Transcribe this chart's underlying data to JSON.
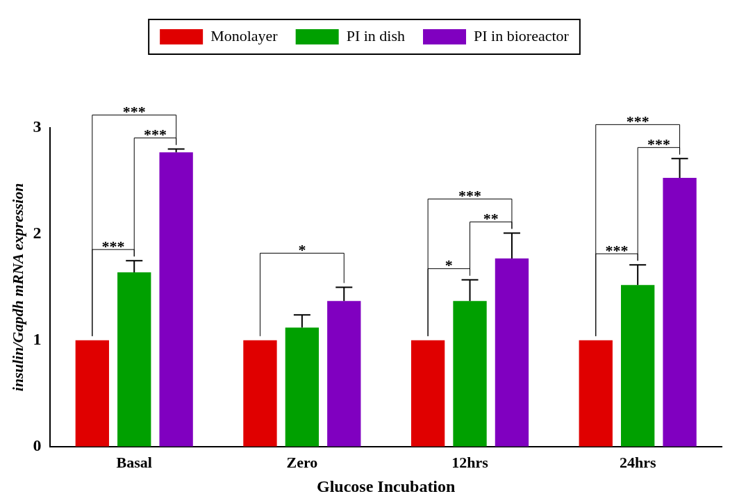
{
  "chart_data": {
    "type": "bar",
    "xlabel": "Glucose Incubation",
    "ylabel": "insulin/Gapdh mRNA expression",
    "categories": [
      "Basal",
      "Zero",
      "12hrs",
      "24hrs"
    ],
    "series": [
      {
        "name": "Monolayer",
        "color": "#e00000",
        "values": [
          1,
          1,
          1,
          1
        ],
        "errors": [
          null,
          null,
          null,
          null
        ]
      },
      {
        "name": "PI in dish",
        "color": "#00a000",
        "values": [
          1.64,
          1.12,
          1.37,
          1.52
        ],
        "errors": [
          0.11,
          0.12,
          0.2,
          0.19
        ]
      },
      {
        "name": "PI in bioreactor",
        "color": "#8000c0",
        "values": [
          2.77,
          1.37,
          1.77,
          2.53
        ],
        "errors": [
          0.03,
          0.13,
          0.24,
          0.18
        ]
      }
    ],
    "ylim": [
      0,
      3
    ],
    "yticks": [
      0,
      1,
      2,
      3
    ],
    "grid": false,
    "legend": "top",
    "annotations": [
      "***",
      "***",
      "***",
      "*",
      "***",
      "**",
      "*",
      "***",
      "***",
      "***"
    ]
  }
}
